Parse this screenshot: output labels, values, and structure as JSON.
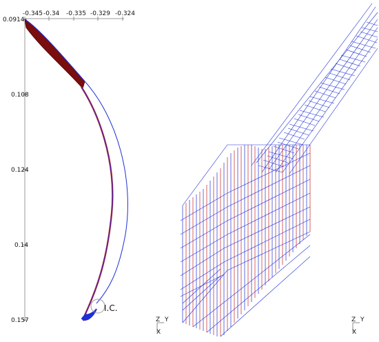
{
  "plot": {
    "x_ticks": [
      "-0.345",
      "-0.34",
      "-0.335",
      "-0.329",
      "-0.324"
    ],
    "y_ticks": [
      "0.0914",
      "0.108",
      "0.124",
      "0.14",
      "0.157"
    ],
    "ic_label": "I.C."
  },
  "triad_left": {
    "z": "Z",
    "y": "Y",
    "x": "X"
  },
  "triad_right": {
    "z": "Z",
    "y": "Y",
    "x": "X"
  },
  "colors": {
    "mesh_blue": "#1f2fd6",
    "mesh_red": "#c62020",
    "dark_red": "#7a0d0d",
    "axis_gray": "#888888"
  }
}
